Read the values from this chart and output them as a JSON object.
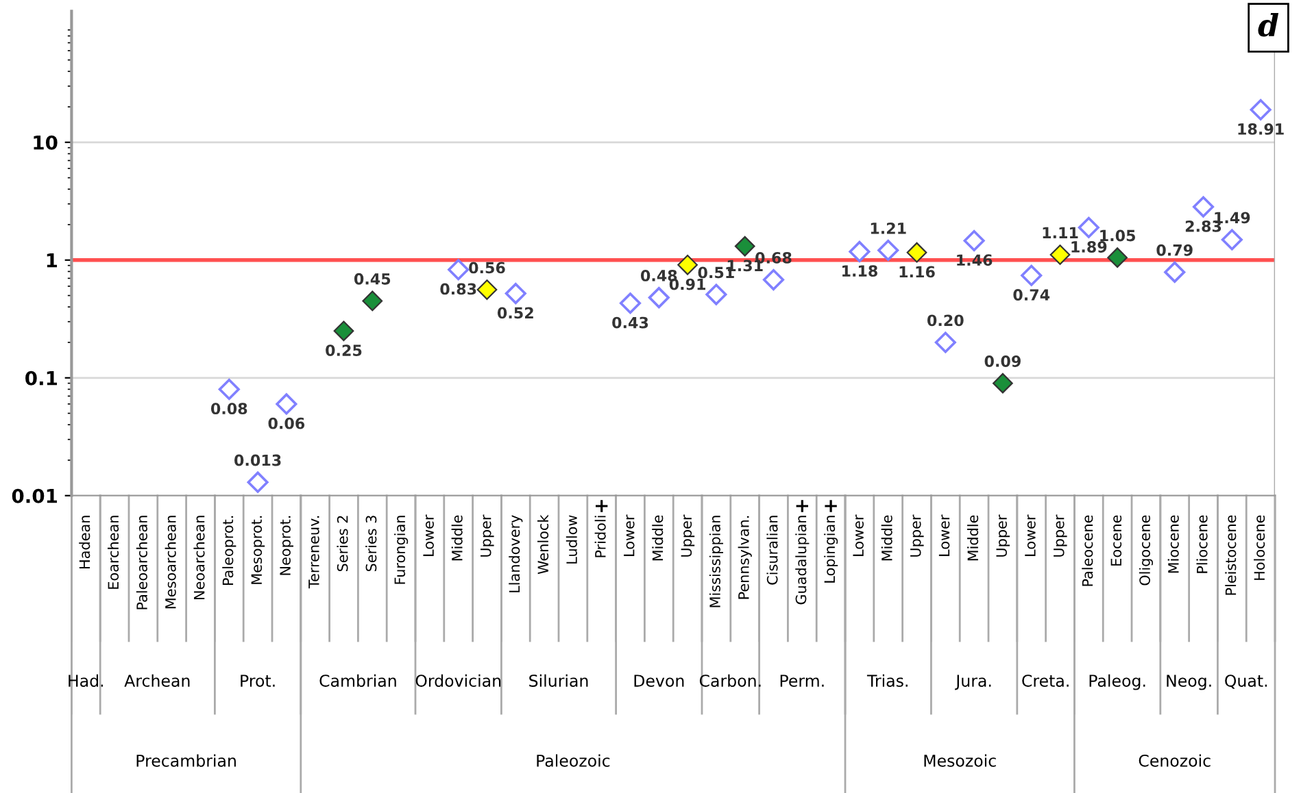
{
  "chart_data": {
    "type": "scatter",
    "categories": [
      "Hadean",
      "Eoarchean",
      "Paleoarchean",
      "Mesoarchean",
      "Neoarchean",
      "Paleoprot.",
      "Mesoprot.",
      "Neoprot.",
      "Terreneuv.",
      "Series 2",
      "Series 3",
      "Furongian",
      "Lower",
      "Middle",
      "Upper",
      "Llandovery",
      "Wenlock",
      "Ludlow",
      "Pridoli",
      "Lower",
      "Middle",
      "Upper",
      "Mississippian",
      "Pennsylvan.",
      "Cisuralian",
      "Guadalupian",
      "Lopingian",
      "Lower",
      "Middle",
      "Upper",
      "Lower",
      "Middle",
      "Upper",
      "Lower",
      "Upper",
      "Paleocene",
      "Eocene",
      "Oligocene",
      "Miocene",
      "Pliocene",
      "Pleistocene",
      "Holocene"
    ],
    "series": [
      {
        "color": "#8080ff",
        "values": [
          null,
          null,
          null,
          null,
          null,
          0.08,
          0.013,
          0.06,
          null,
          null,
          null,
          null,
          null,
          0.83,
          null,
          0.52,
          null,
          null,
          null,
          0.43,
          0.48,
          null,
          0.51,
          null,
          0.68,
          null,
          null,
          1.18,
          1.21,
          null,
          0.2,
          1.46,
          null,
          0.74,
          null,
          1.89,
          null,
          null,
          0.79,
          2.83,
          1.49,
          18.91
        ],
        "value_labels": [
          null,
          null,
          null,
          null,
          null,
          "0.08",
          "0.013",
          "0.06",
          null,
          null,
          null,
          null,
          null,
          "0.83",
          null,
          "0.52",
          null,
          null,
          null,
          "0.43",
          "0.48",
          null,
          "0.51",
          null,
          "0.68",
          null,
          null,
          "1.18",
          "1.21",
          null,
          "0.20",
          "1.46",
          null,
          "0.74",
          null,
          "1.89",
          null,
          null,
          "0.79",
          "2.83",
          "1.49",
          "18.91"
        ]
      },
      {
        "color": "#1a8f3a",
        "values": [
          null,
          null,
          null,
          null,
          null,
          null,
          null,
          null,
          null,
          0.25,
          0.45,
          null,
          null,
          null,
          null,
          null,
          null,
          null,
          null,
          null,
          null,
          null,
          null,
          1.31,
          null,
          null,
          null,
          null,
          null,
          null,
          null,
          null,
          0.09,
          null,
          null,
          null,
          1.05,
          null,
          null,
          null,
          null,
          null
        ],
        "value_labels": [
          null,
          null,
          null,
          null,
          null,
          null,
          null,
          null,
          null,
          "0.25",
          "0.45",
          null,
          null,
          null,
          null,
          null,
          null,
          null,
          null,
          null,
          null,
          null,
          null,
          "1.31",
          null,
          null,
          null,
          null,
          null,
          null,
          null,
          null,
          "0.09",
          null,
          null,
          null,
          "1.05",
          null,
          null,
          null,
          null,
          null
        ]
      },
      {
        "color": "#ffff00",
        "values": [
          null,
          null,
          null,
          null,
          null,
          null,
          null,
          null,
          null,
          null,
          null,
          null,
          null,
          null,
          0.56,
          null,
          null,
          null,
          null,
          null,
          null,
          0.91,
          null,
          null,
          null,
          null,
          null,
          null,
          null,
          1.16,
          null,
          null,
          null,
          null,
          1.11,
          null,
          null,
          null,
          null,
          null,
          null,
          null
        ],
        "value_labels": [
          null,
          null,
          null,
          null,
          null,
          null,
          null,
          null,
          null,
          null,
          null,
          null,
          null,
          null,
          "0.56",
          null,
          null,
          null,
          null,
          null,
          null,
          "0.91",
          null,
          null,
          null,
          null,
          null,
          null,
          null,
          "1.16",
          null,
          null,
          null,
          null,
          "1.11",
          null,
          null,
          null,
          null,
          null,
          null,
          null
        ]
      }
    ],
    "marker": "diamond",
    "log": "y",
    "ylim": [
      0.01,
      130
    ],
    "yticks": [
      0.01,
      0.1,
      1,
      10
    ],
    "grid": "y",
    "ref_lines": [
      {
        "axis": "y",
        "value": 1,
        "color": "#ff5050"
      }
    ],
    "annotations": [
      "Had.",
      "Archean",
      "Prot.",
      "Cambrian",
      "Ordovician",
      "Silurian",
      "Devon",
      "Carbon.",
      "Perm.",
      "Trias.",
      "Jura.",
      "Creta.",
      "Paleog.",
      "Neog.",
      "Quat.",
      "Precambrian",
      "Paleozoic",
      "Mesozoic",
      "Cenozoic",
      "+",
      "+",
      "+",
      "d"
    ]
  }
}
